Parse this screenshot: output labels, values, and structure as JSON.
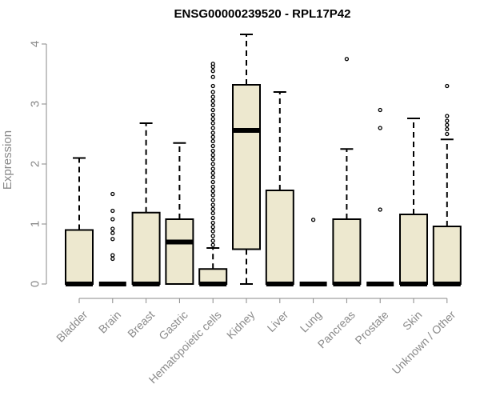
{
  "chart_data": {
    "type": "boxplot",
    "title": "ENSG00000239520 - RPL17P42",
    "ylabel": "Expression",
    "xlabel": "",
    "ylim": [
      0,
      4.2
    ],
    "yticks": [
      0,
      1,
      2,
      3,
      4
    ],
    "box_fill": "#ede8cf",
    "line_color": "#000000",
    "axis_color": "#8a8a8a",
    "categories": [
      "Bladder",
      "Brain",
      "Breast",
      "Gastric",
      "Hematopoietic cells",
      "Kidney",
      "Liver",
      "Lung",
      "Pancreas",
      "Prostate",
      "Skin",
      "Unknown / Other"
    ],
    "boxes": [
      {
        "category": "Bladder",
        "whisker_low": 0,
        "q1": 0,
        "median": 0,
        "q3": 0.9,
        "whisker_high": 2.1,
        "outliers": []
      },
      {
        "category": "Brain",
        "whisker_low": 0,
        "q1": 0,
        "median": 0,
        "q3": 0,
        "whisker_high": 0,
        "outliers": [
          0.42,
          0.48,
          0.75,
          0.85,
          0.92,
          1.08,
          1.22,
          1.5
        ]
      },
      {
        "category": "Breast",
        "whisker_low": 0,
        "q1": 0,
        "median": 0,
        "q3": 1.19,
        "whisker_high": 2.68,
        "outliers": []
      },
      {
        "category": "Gastric",
        "whisker_low": 0,
        "q1": 0,
        "median": 0.7,
        "q3": 1.08,
        "whisker_high": 2.35,
        "outliers": []
      },
      {
        "category": "Hematopoietic cells",
        "whisker_low": 0,
        "q1": 0,
        "median": 0,
        "q3": 0.25,
        "whisker_high": 0.6,
        "outliers": [
          0.65,
          0.72,
          0.8,
          0.88,
          0.95,
          1.02,
          1.1,
          1.18,
          1.25,
          1.32,
          1.4,
          1.48,
          1.55,
          1.62,
          1.7,
          1.78,
          1.85,
          1.92,
          2.0,
          2.08,
          2.15,
          2.22,
          2.3,
          2.38,
          2.45,
          2.52,
          2.6,
          2.68,
          2.75,
          2.82,
          2.9,
          2.98,
          3.05,
          3.12,
          3.2,
          3.3,
          3.45,
          3.55,
          3.62,
          3.67
        ]
      },
      {
        "category": "Kidney",
        "whisker_low": 0,
        "q1": 0.58,
        "median": 2.56,
        "q3": 3.32,
        "whisker_high": 4.16,
        "outliers": []
      },
      {
        "category": "Liver",
        "whisker_low": 0,
        "q1": 0,
        "median": 0,
        "q3": 1.56,
        "whisker_high": 3.2,
        "outliers": []
      },
      {
        "category": "Lung",
        "whisker_low": 0,
        "q1": 0,
        "median": 0,
        "q3": 0,
        "whisker_high": 0,
        "outliers": [
          1.07
        ]
      },
      {
        "category": "Pancreas",
        "whisker_low": 0,
        "q1": 0,
        "median": 0,
        "q3": 1.08,
        "whisker_high": 2.25,
        "outliers": [
          3.75
        ]
      },
      {
        "category": "Prostate",
        "whisker_low": 0,
        "q1": 0,
        "median": 0,
        "q3": 0,
        "whisker_high": 0,
        "outliers": [
          1.24,
          2.6,
          2.9
        ]
      },
      {
        "category": "Skin",
        "whisker_low": 0,
        "q1": 0,
        "median": 0,
        "q3": 1.16,
        "whisker_high": 2.76,
        "outliers": []
      },
      {
        "category": "Unknown / Other",
        "whisker_low": 0,
        "q1": 0,
        "median": 0,
        "q3": 0.96,
        "whisker_high": 2.41,
        "outliers": [
          2.5,
          2.58,
          2.65,
          2.72,
          2.8,
          3.3
        ]
      }
    ]
  }
}
